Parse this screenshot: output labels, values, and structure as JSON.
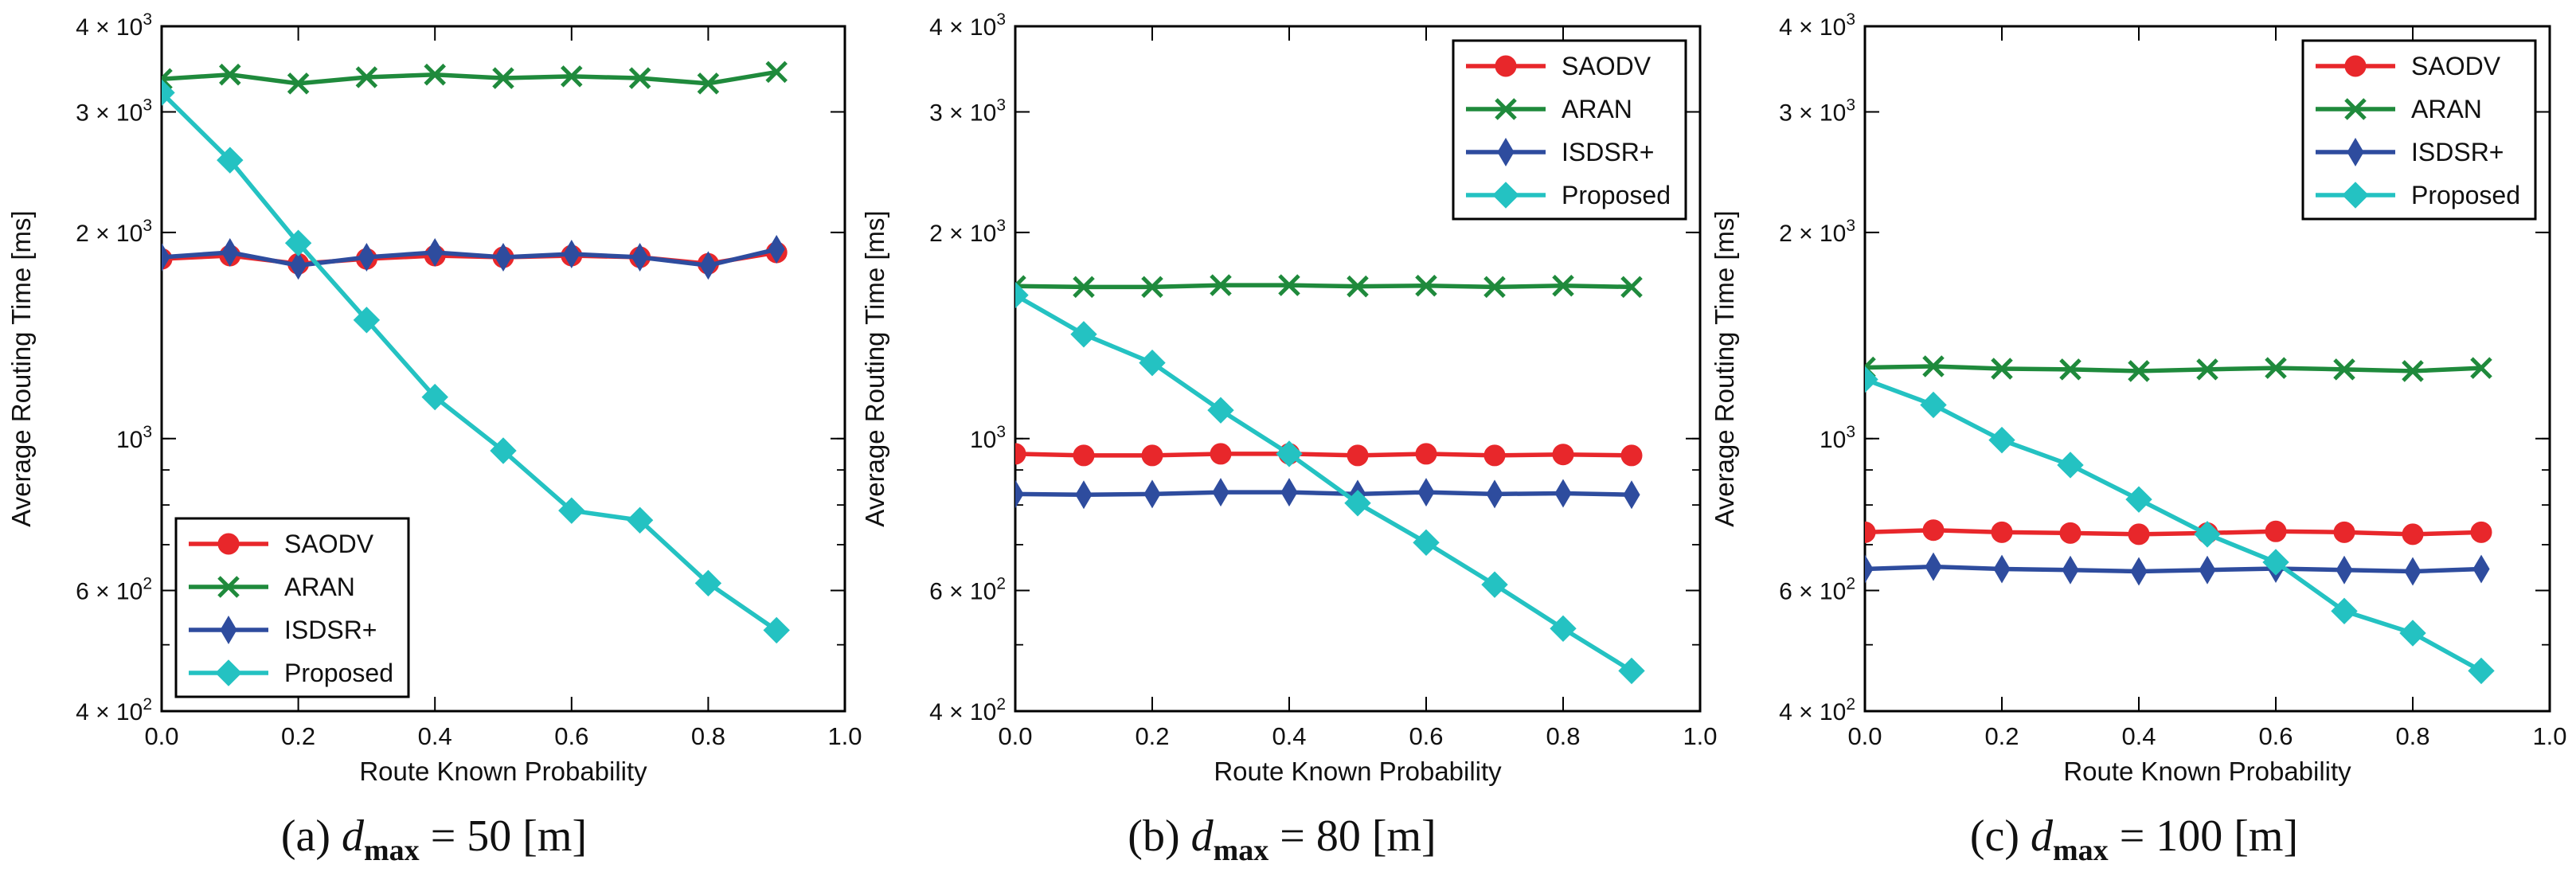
{
  "chart_data": [
    {
      "type": "line",
      "caption": "(a) d_max = 50 [m]",
      "caption_prefix": "(a)",
      "caption_value": "50",
      "caption_unit": "[m]",
      "xlabel": "Route Known Probability",
      "ylabel": "Average Routing Time [ms]",
      "yscale": "log",
      "xlim": [
        0.0,
        1.0
      ],
      "ylim": [
        400,
        4000
      ],
      "x_ticks": [
        "0.0",
        "0.2",
        "0.4",
        "0.6",
        "0.8",
        "1.0"
      ],
      "y_ticks": [
        {
          "value": 400,
          "mant": "4",
          "exp": "2"
        },
        {
          "value": 600,
          "mant": "6",
          "exp": "2"
        },
        {
          "value": 1000,
          "mant": "10",
          "exp": "3"
        },
        {
          "value": 2000,
          "mant": "2",
          "exp": "3"
        },
        {
          "value": 3000,
          "mant": "3",
          "exp": "3"
        },
        {
          "value": 4000,
          "mant": "4",
          "exp": "3"
        }
      ],
      "legend_position": "lower-left",
      "x": [
        0.0,
        0.1,
        0.2,
        0.3,
        0.4,
        0.5,
        0.6,
        0.7,
        0.8,
        0.9
      ],
      "series": [
        {
          "name": "SAODV",
          "color": "#e8272b",
          "marker": "circle",
          "values": [
            1830,
            1850,
            1800,
            1830,
            1850,
            1840,
            1850,
            1840,
            1800,
            1870
          ]
        },
        {
          "name": "ARAN",
          "color": "#1f8a3c",
          "marker": "x",
          "values": [
            3350,
            3400,
            3300,
            3370,
            3400,
            3360,
            3380,
            3360,
            3300,
            3430
          ]
        },
        {
          "name": "ISDSR+",
          "color": "#2e4c9e",
          "marker": "thin_diamond",
          "values": [
            1840,
            1870,
            1790,
            1840,
            1870,
            1840,
            1860,
            1840,
            1790,
            1890
          ]
        },
        {
          "name": "Proposed",
          "color": "#24c2c2",
          "marker": "diamond",
          "values": [
            3200,
            2550,
            1930,
            1490,
            1150,
            960,
            785,
            760,
            615,
            525
          ]
        }
      ]
    },
    {
      "type": "line",
      "caption": "(b) d_max = 80 [m]",
      "caption_prefix": "(b)",
      "caption_value": "80",
      "caption_unit": "[m]",
      "xlabel": "Route Known Probability",
      "ylabel": "Average Routing Time [ms]",
      "yscale": "log",
      "xlim": [
        0.0,
        1.0
      ],
      "ylim": [
        400,
        4000
      ],
      "x_ticks": [
        "0.0",
        "0.2",
        "0.4",
        "0.6",
        "0.8",
        "1.0"
      ],
      "y_ticks": [
        {
          "value": 400,
          "mant": "4",
          "exp": "2"
        },
        {
          "value": 600,
          "mant": "6",
          "exp": "2"
        },
        {
          "value": 1000,
          "mant": "10",
          "exp": "3"
        },
        {
          "value": 2000,
          "mant": "2",
          "exp": "3"
        },
        {
          "value": 3000,
          "mant": "3",
          "exp": "3"
        },
        {
          "value": 4000,
          "mant": "4",
          "exp": "3"
        }
      ],
      "legend_position": "upper-right",
      "x": [
        0.0,
        0.1,
        0.2,
        0.3,
        0.4,
        0.5,
        0.6,
        0.7,
        0.8,
        0.9
      ],
      "series": [
        {
          "name": "SAODV",
          "color": "#e8272b",
          "marker": "circle",
          "values": [
            950,
            945,
            945,
            950,
            950,
            945,
            950,
            945,
            948,
            945
          ]
        },
        {
          "name": "ARAN",
          "color": "#1f8a3c",
          "marker": "x",
          "values": [
            1670,
            1665,
            1665,
            1675,
            1675,
            1668,
            1672,
            1665,
            1672,
            1665
          ]
        },
        {
          "name": "ISDSR+",
          "color": "#2e4c9e",
          "marker": "thin_diamond",
          "values": [
            830,
            828,
            830,
            835,
            835,
            830,
            835,
            830,
            832,
            828
          ]
        },
        {
          "name": "Proposed",
          "color": "#24c2c2",
          "marker": "diamond",
          "values": [
            1620,
            1420,
            1290,
            1100,
            950,
            805,
            705,
            612,
            528,
            458
          ]
        }
      ]
    },
    {
      "type": "line",
      "caption": "(c) d_max = 100 [m]",
      "caption_prefix": "(c)",
      "caption_value": "100",
      "caption_unit": "[m]",
      "xlabel": "Route Known Probability",
      "ylabel": "Average Routing Time [ms]",
      "yscale": "log",
      "xlim": [
        0.0,
        1.0
      ],
      "ylim": [
        400,
        4000
      ],
      "x_ticks": [
        "0.0",
        "0.2",
        "0.4",
        "0.6",
        "0.8",
        "1.0"
      ],
      "y_ticks": [
        {
          "value": 400,
          "mant": "4",
          "exp": "2"
        },
        {
          "value": 600,
          "mant": "6",
          "exp": "2"
        },
        {
          "value": 1000,
          "mant": "10",
          "exp": "3"
        },
        {
          "value": 2000,
          "mant": "2",
          "exp": "3"
        },
        {
          "value": 3000,
          "mant": "3",
          "exp": "3"
        },
        {
          "value": 4000,
          "mant": "4",
          "exp": "3"
        }
      ],
      "legend_position": "upper-right",
      "x": [
        0.0,
        0.1,
        0.2,
        0.3,
        0.4,
        0.5,
        0.6,
        0.7,
        0.8,
        0.9
      ],
      "series": [
        {
          "name": "SAODV",
          "color": "#e8272b",
          "marker": "circle",
          "values": [
            730,
            735,
            730,
            728,
            725,
            728,
            732,
            730,
            725,
            730
          ]
        },
        {
          "name": "ARAN",
          "color": "#1f8a3c",
          "marker": "x",
          "values": [
            1270,
            1275,
            1265,
            1262,
            1255,
            1262,
            1268,
            1262,
            1255,
            1268
          ]
        },
        {
          "name": "ISDSR+",
          "color": "#2e4c9e",
          "marker": "thin_diamond",
          "values": [
            645,
            650,
            645,
            643,
            640,
            643,
            646,
            643,
            640,
            645
          ]
        },
        {
          "name": "Proposed",
          "color": "#24c2c2",
          "marker": "diamond",
          "values": [
            1220,
            1120,
            995,
            915,
            815,
            725,
            660,
            560,
            520,
            458
          ]
        }
      ]
    }
  ]
}
